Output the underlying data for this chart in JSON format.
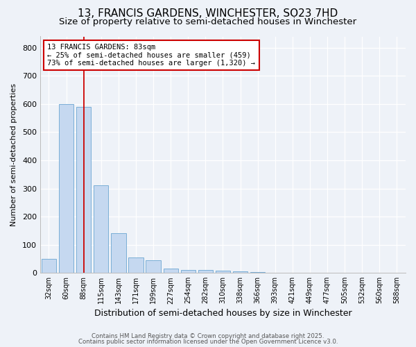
{
  "title_line1": "13, FRANCIS GARDENS, WINCHESTER, SO23 7HD",
  "title_line2": "Size of property relative to semi-detached houses in Winchester",
  "xlabel": "Distribution of semi-detached houses by size in Winchester",
  "ylabel": "Number of semi-detached properties",
  "footer_line1": "Contains HM Land Registry data © Crown copyright and database right 2025.",
  "footer_line2": "Contains public sector information licensed under the Open Government Licence v3.0.",
  "bar_labels": [
    "32sqm",
    "60sqm",
    "88sqm",
    "115sqm",
    "143sqm",
    "171sqm",
    "199sqm",
    "227sqm",
    "254sqm",
    "282sqm",
    "310sqm",
    "338sqm",
    "366sqm",
    "393sqm",
    "421sqm",
    "449sqm",
    "477sqm",
    "505sqm",
    "532sqm",
    "560sqm",
    "588sqm"
  ],
  "bar_values": [
    50,
    600,
    590,
    310,
    140,
    55,
    45,
    15,
    10,
    10,
    8,
    5,
    3,
    0,
    0,
    0,
    0,
    0,
    0,
    0,
    0
  ],
  "bar_color": "#c5d8f0",
  "bar_edge_color": "#7aaed6",
  "vline_x": 2,
  "vline_color": "#cc0000",
  "annotation_title": "13 FRANCIS GARDENS: 83sqm",
  "annotation_line1": "← 25% of semi-detached houses are smaller (459)",
  "annotation_line2": "73% of semi-detached houses are larger (1,320) →",
  "annotation_box_color": "#cc0000",
  "ylim": [
    0,
    840
  ],
  "yticks": [
    0,
    100,
    200,
    300,
    400,
    500,
    600,
    700,
    800
  ],
  "bg_color": "#eef2f8",
  "plot_bg_color": "#eef2f8",
  "grid_color": "#ffffff",
  "title_fontsize": 11,
  "subtitle_fontsize": 9.5
}
